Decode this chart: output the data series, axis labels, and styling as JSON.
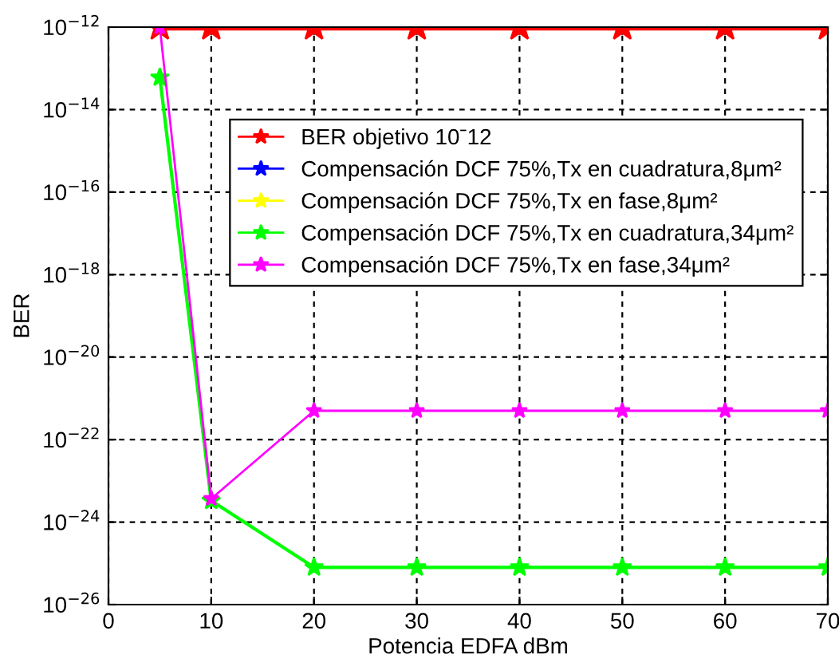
{
  "chart_data": {
    "type": "line",
    "xlabel": "Potencia EDFA dBm",
    "ylabel": "BER",
    "log": "y",
    "x": [
      5,
      10,
      20,
      30,
      40,
      50,
      60,
      70
    ],
    "series": [
      {
        "name": "BER objetivo 10ˉ12",
        "color": "#ff0000",
        "values": [
          1e-12,
          1e-12,
          1e-12,
          1e-12,
          1e-12,
          1e-12,
          1e-12,
          1e-12
        ]
      },
      {
        "name": "Compensación DCF 75%,Tx en cuadratura,8μm²",
        "color": "#0000ff",
        "values": [
          null,
          null,
          null,
          null,
          null,
          null,
          null,
          null
        ]
      },
      {
        "name": "Compensación DCF 75%,Tx en fase,8μm²",
        "color": "#ffff00",
        "values": [
          null,
          null,
          null,
          null,
          null,
          null,
          null,
          null
        ]
      },
      {
        "name": "Compensación DCF 75%,Tx en cuadratura,34μm²",
        "color": "#00ff00",
        "values": [
          6e-14,
          3.3e-24,
          8e-26,
          8e-26,
          8e-26,
          8e-26,
          8e-26,
          8e-26
        ]
      },
      {
        "name": "Compensación DCF 75%,Tx en fase,34μm²",
        "color": "#ff00ff",
        "values": [
          1e-12,
          3.7e-24,
          5e-22,
          5e-22,
          5e-22,
          5e-22,
          5e-22,
          5e-22
        ]
      }
    ],
    "xlim": [
      0,
      70
    ],
    "xticks": [
      0,
      10,
      20,
      30,
      40,
      50,
      60,
      70
    ],
    "ylim": [
      1e-26,
      1e-12
    ],
    "yticks": [
      {
        "value": 1e-26,
        "label": "10$^{−26}$"
      },
      {
        "value": 1e-24,
        "label": "10$^{−24}$"
      },
      {
        "value": 1e-22,
        "label": "10$^{−22}$"
      },
      {
        "value": 1e-20,
        "label": "10$^{−20}$"
      },
      {
        "value": 1e-18,
        "label": "10$^{−18}$"
      },
      {
        "value": 1e-16,
        "label": "10$^{−16}$"
      },
      {
        "value": 1e-14,
        "label": "10$^{−14}$"
      },
      {
        "value": 1e-12,
        "label": "10$^{−12}$"
      }
    ],
    "grid": true,
    "legend": "top right",
    "marker": "star",
    "line_style": "solid"
  }
}
